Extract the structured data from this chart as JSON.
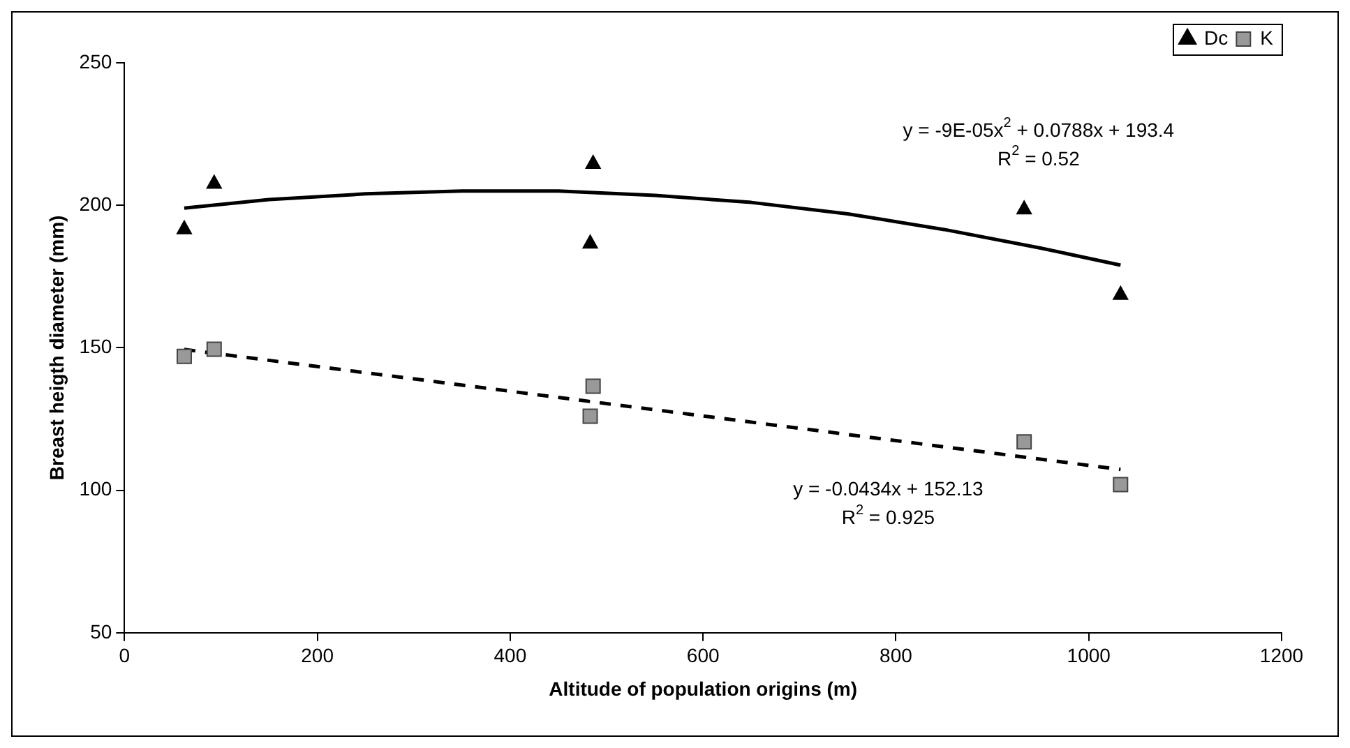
{
  "chart_data": {
    "type": "scatter",
    "xlabel": "Altitude of population origins (m)",
    "ylabel": "Breast heigth diameter (mm)",
    "xlim": [
      0,
      1200
    ],
    "xticks": [
      0,
      200,
      400,
      600,
      800,
      1000,
      1200
    ],
    "ylim": [
      50,
      250
    ],
    "yticks": [
      50,
      100,
      150,
      200,
      250
    ],
    "grid": false,
    "legend": "top right",
    "x": [
      62,
      93,
      483,
      486,
      933,
      1033
    ],
    "series": [
      {
        "name": "Dc",
        "color": "#000000",
        "marker": "triangle",
        "values": [
          192,
          208,
          187,
          215,
          199,
          169
        ]
      },
      {
        "name": "K",
        "color": "#999999",
        "marker": "square",
        "values": [
          147,
          149.5,
          126,
          136.5,
          117,
          102
        ]
      },
      {
        "type": "line",
        "color": "#000000",
        "line_style": "solid",
        "marker": "none",
        "x": [
          62,
          150,
          250,
          350,
          450,
          550,
          650,
          750,
          850,
          950,
          1033
        ],
        "values": [
          199,
          202,
          204,
          205,
          205,
          203.5,
          201,
          197,
          191.5,
          185,
          179
        ]
      },
      {
        "type": "line",
        "color": "#000000",
        "line_style": "dashed",
        "marker": "none",
        "x": [
          62,
          1033
        ],
        "values": [
          149.4,
          107.3
        ]
      }
    ],
    "annotations": [
      "y = -9E-05x$^{2}$ + 0.0788x + 193.4",
      "R$^{2}$ = 0.52",
      "y = -0.0434x + 152.13",
      "R$^{2}$ = 0.925"
    ]
  }
}
